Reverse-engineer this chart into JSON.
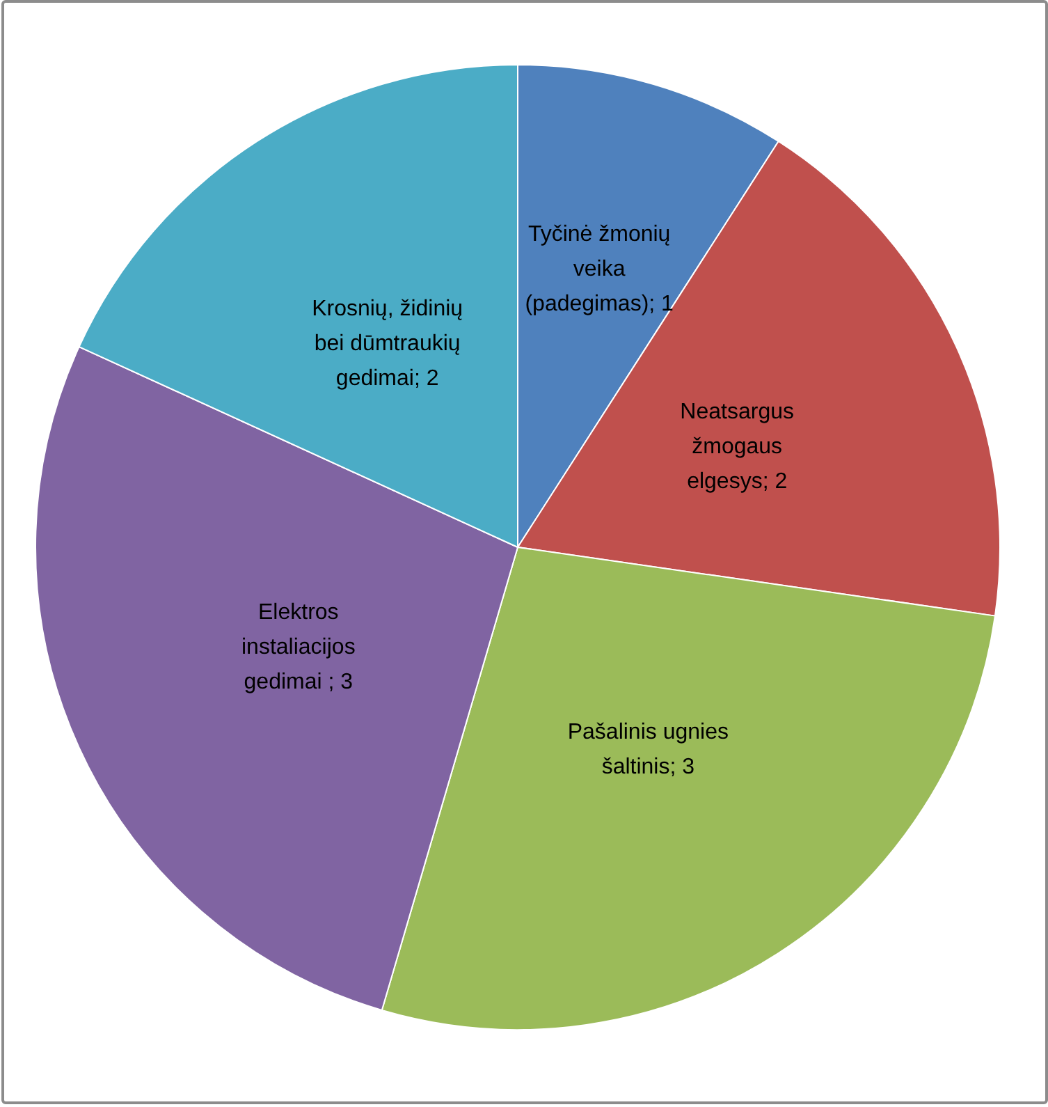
{
  "chart_data": {
    "type": "pie",
    "categories": [
      "Tyčinė žmonių veika (padegimas)",
      "Neatsargus žmogaus elgesys",
      "Pašalinis ugnies šaltinis",
      "Elektros instaliacijos gedimai ",
      "Krosnių, židinių bei dūmtraukių gedimai"
    ],
    "values": [
      1,
      2,
      3,
      3,
      2
    ],
    "value_labels": [
      "; 1",
      "; 2",
      "; 3",
      "; 3",
      "; 2"
    ],
    "colors": [
      "#4f81bd",
      "#c0504d",
      "#9bbb59",
      "#8064a2",
      "#4bacc6"
    ]
  }
}
